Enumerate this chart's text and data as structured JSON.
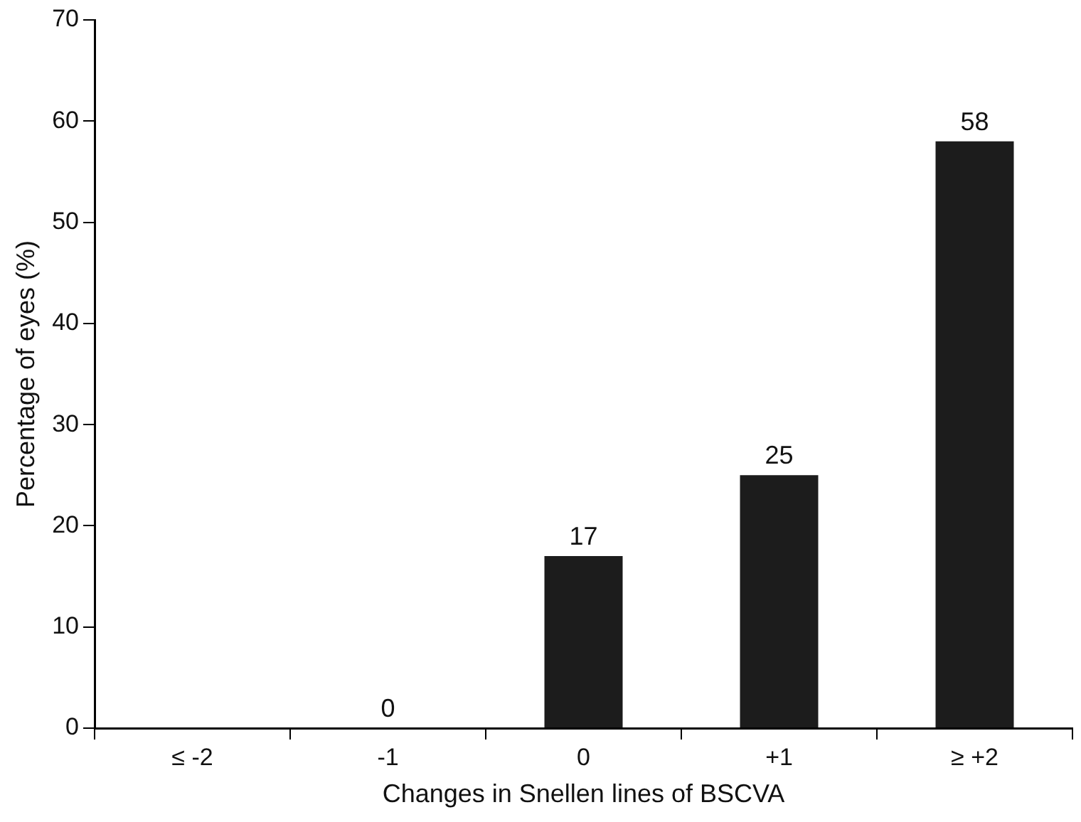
{
  "chart_data": {
    "type": "bar",
    "xlabel": "Changes in Snellen lines of BSCVA",
    "ylabel": "Percentage of eyes (%)",
    "categories": [
      "≤ -2",
      "-1",
      "0",
      "+1",
      "≥ +2"
    ],
    "values": [
      0,
      0,
      17,
      25,
      58
    ],
    "value_labels": [
      null,
      "0",
      "17",
      "25",
      "58"
    ],
    "color": "#1c1c1c",
    "ylim": [
      0,
      70
    ],
    "yticks": [
      0,
      10,
      20,
      30,
      40,
      50,
      60,
      70
    ],
    "grid": false,
    "legend": false
  }
}
